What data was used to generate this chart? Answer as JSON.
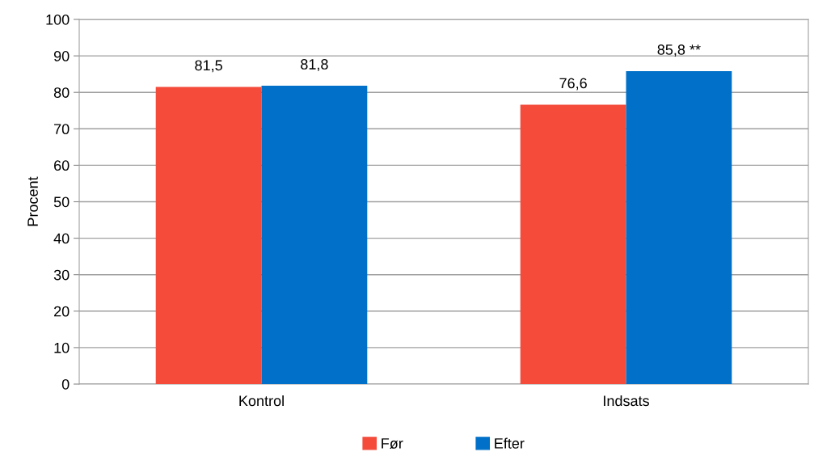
{
  "chart_data": {
    "type": "bar",
    "ylabel": "Procent",
    "categories": [
      "Kontrol",
      "Indsats"
    ],
    "series": [
      {
        "name": "Før",
        "color": "#f44b3b",
        "values": [
          81.5,
          76.6
        ],
        "value_labels": [
          "81,5",
          "76,6"
        ]
      },
      {
        "name": "Efter",
        "color": "#0070c8",
        "values": [
          81.8,
          85.8
        ],
        "value_labels": [
          "81,8",
          "85,8 **"
        ]
      }
    ],
    "ylim": [
      0,
      100
    ],
    "yticks": [
      0,
      10,
      20,
      30,
      40,
      50,
      60,
      70,
      80,
      90,
      100
    ],
    "grid": "y",
    "legend": "bottom"
  }
}
